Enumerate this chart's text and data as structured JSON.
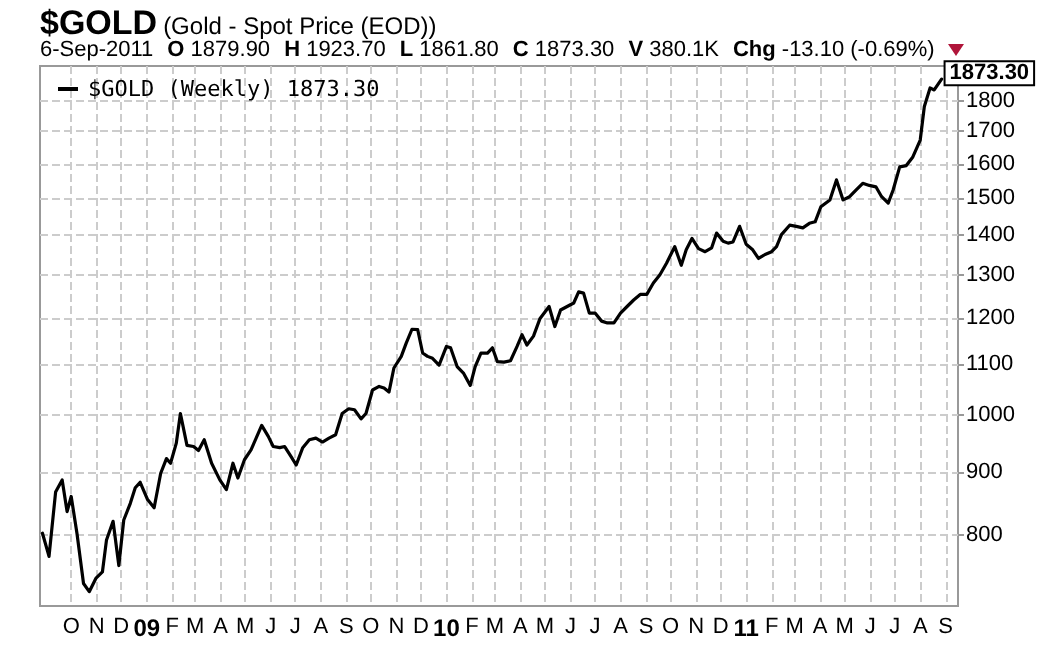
{
  "chart_data": {
    "type": "line",
    "title": "$GOLD",
    "subtitle": "(Gold - Spot Price (EOD))",
    "annotations": [
      "6-Sep-2011",
      "O 1879.90",
      "H 1923.70",
      "L 1861.80",
      "C 1873.30",
      "V 380.1K",
      "Chg -13.10 (-0.69%)",
      {
        "text": "1873.30",
        "x": "2011-08-27",
        "y": 1873.3
      }
    ],
    "x": [
      "2008-08-27",
      "2008-09-04",
      "2008-09-12",
      "2008-09-20",
      "2008-09-26",
      "2008-10-01",
      "2008-10-08",
      "2008-10-16",
      "2008-10-23",
      "2008-10-31",
      "2008-11-08",
      "2008-11-13",
      "2008-11-21",
      "2008-11-28",
      "2008-12-04",
      "2008-12-12",
      "2008-12-18",
      "2008-12-24",
      "2009-01-02",
      "2009-01-10",
      "2009-01-18",
      "2009-01-25",
      "2009-01-30",
      "2009-02-06",
      "2009-02-11",
      "2009-02-19",
      "2009-02-27",
      "2009-03-05",
      "2009-03-12",
      "2009-03-21",
      "2009-03-31",
      "2009-04-08",
      "2009-04-16",
      "2009-04-22",
      "2009-04-30",
      "2009-05-08",
      "2009-05-21",
      "2009-05-29",
      "2009-06-04",
      "2009-06-12",
      "2009-06-18",
      "2009-06-26",
      "2009-07-02",
      "2009-07-10",
      "2009-07-18",
      "2009-07-26",
      "2009-08-03",
      "2009-08-11",
      "2009-08-19",
      "2009-08-27",
      "2009-09-04",
      "2009-09-11",
      "2009-09-19",
      "2009-09-25",
      "2009-10-03",
      "2009-10-11",
      "2009-10-17",
      "2009-10-23",
      "2009-10-29",
      "2009-11-07",
      "2009-11-13",
      "2009-11-20",
      "2009-11-27",
      "2009-12-03",
      "2009-12-09",
      "2009-12-15",
      "2009-12-23",
      "2010-01-01",
      "2010-01-06",
      "2010-01-14",
      "2010-01-22",
      "2010-01-30",
      "2010-02-05",
      "2010-02-12",
      "2010-02-20",
      "2010-02-26",
      "2010-03-04",
      "2010-03-12",
      "2010-03-20",
      "2010-03-28",
      "2010-04-03",
      "2010-04-09",
      "2010-04-17",
      "2010-04-25",
      "2010-05-06",
      "2010-05-13",
      "2010-05-20",
      "2010-05-28",
      "2010-06-05",
      "2010-06-11",
      "2010-06-17",
      "2010-06-24",
      "2010-07-01",
      "2010-07-09",
      "2010-07-16",
      "2010-07-24",
      "2010-08-01",
      "2010-08-09",
      "2010-08-17",
      "2010-08-25",
      "2010-09-02",
      "2010-09-10",
      "2010-09-18",
      "2010-09-26",
      "2010-10-06",
      "2010-10-14",
      "2010-10-20",
      "2010-10-27",
      "2010-11-04",
      "2010-11-12",
      "2010-11-20",
      "2010-11-26",
      "2010-12-04",
      "2010-12-10",
      "2010-12-16",
      "2010-12-24",
      "2011-01-01",
      "2011-01-09",
      "2011-01-16",
      "2011-01-24",
      "2011-02-01",
      "2011-02-07",
      "2011-02-13",
      "2011-02-23",
      "2011-03-03",
      "2011-03-11",
      "2011-03-19",
      "2011-03-26",
      "2011-04-02",
      "2011-04-13",
      "2011-04-21",
      "2011-04-29",
      "2011-05-07",
      "2011-05-15",
      "2011-05-23",
      "2011-05-31",
      "2011-06-08",
      "2011-06-15",
      "2011-06-23",
      "2011-06-29",
      "2011-07-07",
      "2011-07-15",
      "2011-07-23",
      "2011-08-01",
      "2011-08-06",
      "2011-08-13",
      "2011-08-18",
      "2011-08-27"
    ],
    "series": [
      {
        "name": "$GOLD (Weekly) 1873.30",
        "color": "#000000",
        "values": [
          802,
          768,
          866,
          886,
          835,
          859,
          802,
          730,
          719,
          737,
          746,
          792,
          820,
          755,
          822,
          848,
          873,
          882,
          854,
          841,
          897,
          922,
          914,
          949,
          1003,
          945,
          943,
          936,
          955,
          914,
          886,
          870,
          914,
          889,
          920,
          937,
          981,
          961,
          943,
          941,
          943,
          925,
          911,
          941,
          955,
          958,
          951,
          958,
          964,
          1003,
          1012,
          1010,
          993,
          1003,
          1048,
          1055,
          1052,
          1044,
          1092,
          1116,
          1144,
          1174,
          1173,
          1123,
          1116,
          1112,
          1098,
          1137,
          1134,
          1095,
          1081,
          1057,
          1095,
          1123,
          1123,
          1134,
          1105,
          1104,
          1107,
          1137,
          1162,
          1140,
          1159,
          1198,
          1225,
          1180,
          1217,
          1225,
          1233,
          1259,
          1256,
          1210,
          1210,
          1192,
          1188,
          1188,
          1210,
          1225,
          1240,
          1253,
          1253,
          1280,
          1300,
          1328,
          1370,
          1323,
          1362,
          1391,
          1365,
          1357,
          1367,
          1405,
          1384,
          1379,
          1382,
          1423,
          1376,
          1362,
          1340,
          1350,
          1357,
          1370,
          1401,
          1426,
          1423,
          1419,
          1431,
          1435,
          1476,
          1495,
          1552,
          1495,
          1504,
          1523,
          1542,
          1536,
          1532,
          1504,
          1486,
          1523,
          1590,
          1594,
          1620,
          1672,
          1780,
          1843,
          1836,
          1873.3
        ]
      }
    ],
    "xlim": [
      "2008-08-24",
      "2011-09-16"
    ],
    "xticks": [
      {
        "value": "2008-10-01",
        "label": "O"
      },
      {
        "value": "2008-11-01",
        "label": "N"
      },
      {
        "value": "2008-12-01",
        "label": "D"
      },
      {
        "value": "2009-01-01",
        "label": "09"
      },
      {
        "value": "2009-02-01",
        "label": "F"
      },
      {
        "value": "2009-03-01",
        "label": "M"
      },
      {
        "value": "2009-04-01",
        "label": "A"
      },
      {
        "value": "2009-05-01",
        "label": "M"
      },
      {
        "value": "2009-06-01",
        "label": "J"
      },
      {
        "value": "2009-07-01",
        "label": "J"
      },
      {
        "value": "2009-08-01",
        "label": "A"
      },
      {
        "value": "2009-09-01",
        "label": "S"
      },
      {
        "value": "2009-10-01",
        "label": "O"
      },
      {
        "value": "2009-11-01",
        "label": "N"
      },
      {
        "value": "2009-12-01",
        "label": "D"
      },
      {
        "value": "2010-01-01",
        "label": "10"
      },
      {
        "value": "2010-02-01",
        "label": "F"
      },
      {
        "value": "2010-03-01",
        "label": "M"
      },
      {
        "value": "2010-04-01",
        "label": "A"
      },
      {
        "value": "2010-05-01",
        "label": "M"
      },
      {
        "value": "2010-06-01",
        "label": "J"
      },
      {
        "value": "2010-07-01",
        "label": "J"
      },
      {
        "value": "2010-08-01",
        "label": "A"
      },
      {
        "value": "2010-09-01",
        "label": "S"
      },
      {
        "value": "2010-10-01",
        "label": "O"
      },
      {
        "value": "2010-11-01",
        "label": "N"
      },
      {
        "value": "2010-12-01",
        "label": "D"
      },
      {
        "value": "2011-01-01",
        "label": "11"
      },
      {
        "value": "2011-02-01",
        "label": "F"
      },
      {
        "value": "2011-03-01",
        "label": "M"
      },
      {
        "value": "2011-04-01",
        "label": "A"
      },
      {
        "value": "2011-05-01",
        "label": "M"
      },
      {
        "value": "2011-06-01",
        "label": "J"
      },
      {
        "value": "2011-07-01",
        "label": "J"
      },
      {
        "value": "2011-08-01",
        "label": "A"
      },
      {
        "value": "2011-09-01",
        "label": "S"
      }
    ],
    "ylim": [
      700,
      1920
    ],
    "yticks": [
      800,
      900,
      1000,
      1100,
      1200,
      1300,
      1400,
      1500,
      1600,
      1700,
      1800
    ],
    "log": "y",
    "grid": true,
    "legend": "top left",
    "marker": "none",
    "line_style": "solid"
  }
}
